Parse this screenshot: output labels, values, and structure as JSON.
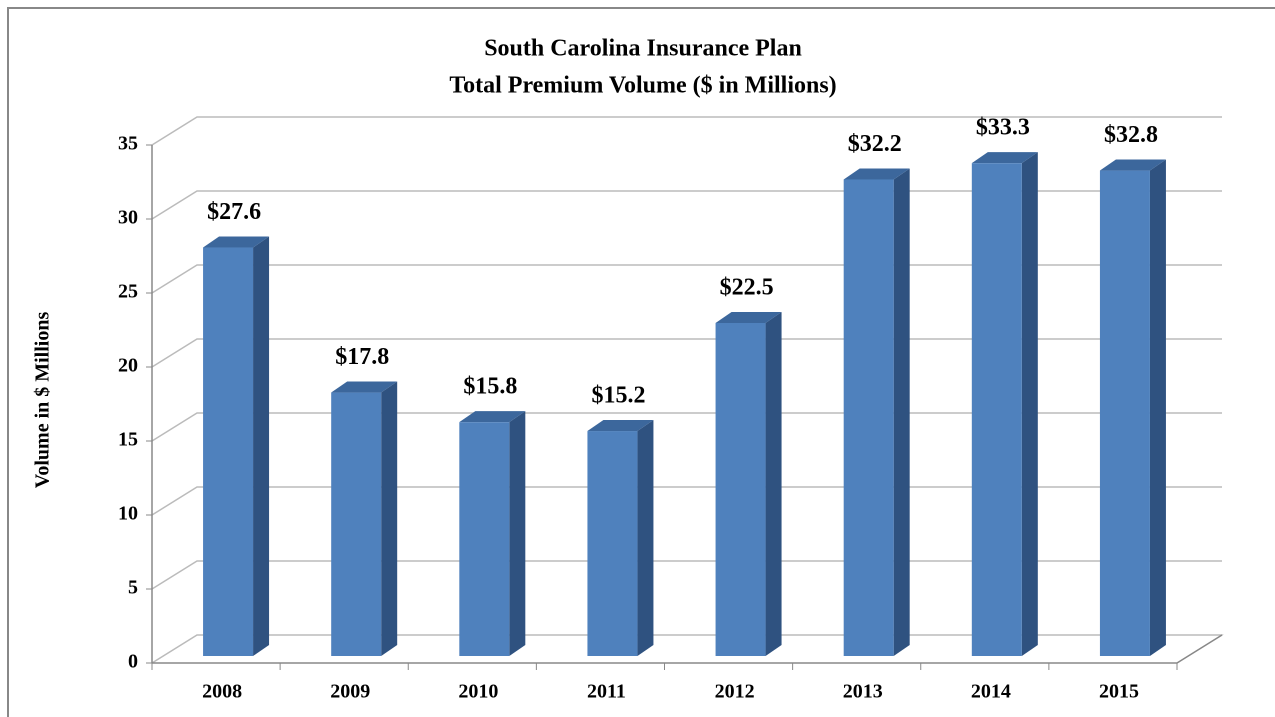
{
  "chart_data": {
    "type": "bar3d",
    "title": "South Carolina Insurance Plan",
    "subtitle": "Total Premium Volume ($ in Millions)",
    "y_label": "Volume in $ Millions",
    "categories": [
      "2008",
      "2009",
      "2010",
      "2011",
      "2012",
      "2013",
      "2014",
      "2015"
    ],
    "values": [
      27.6,
      17.8,
      15.8,
      15.2,
      22.5,
      32.2,
      33.3,
      32.8
    ],
    "value_labels": [
      "$27.6",
      "$17.8",
      "$15.8",
      "$15.2",
      "$22.5",
      "$32.2",
      "$33.3",
      "$32.8"
    ],
    "color": "#4f81bd",
    "ylim": [
      0,
      35
    ],
    "yticks": [
      0,
      5,
      10,
      15,
      20,
      25,
      30,
      35
    ],
    "grid": true
  }
}
